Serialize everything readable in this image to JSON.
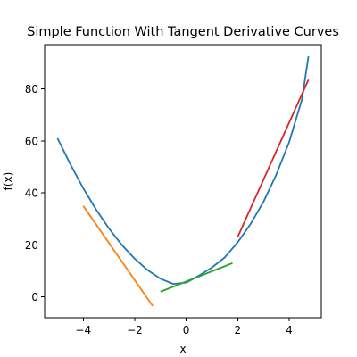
{
  "chart_data": {
    "type": "line",
    "title": "Simple Function With Tangent Derivative Curves",
    "xlabel": "x",
    "ylabel": "f(x)",
    "xlim": [
      -5.5,
      5.25
    ],
    "ylim": [
      -8,
      97
    ],
    "xticks": [
      -4,
      -2,
      0,
      2,
      4
    ],
    "yticks": [
      0,
      20,
      40,
      60,
      80
    ],
    "grid": false,
    "legend": "none",
    "series": [
      {
        "key": "function",
        "color": "#1f77b4",
        "x": [
          -5.0,
          -4.5,
          -4.0,
          -3.5,
          -3.0,
          -2.5,
          -2.0,
          -1.5,
          -1.0,
          -0.5,
          0.0,
          0.5,
          1.0,
          1.5,
          2.0,
          2.5,
          3.0,
          3.5,
          4.0,
          4.5,
          4.75
        ],
        "y": [
          61.0,
          51.0,
          41.8,
          33.6,
          26.3,
          20.0,
          14.7,
          10.3,
          7.0,
          5.0,
          5.5,
          8.2,
          11.3,
          15.2,
          21.0,
          28.0,
          36.5,
          47.0,
          59.5,
          76.0,
          92.5
        ]
      },
      {
        "key": "tangent-1",
        "color": "#ff7f0e",
        "x": [
          -4.0,
          -1.3
        ],
        "y": [
          35.0,
          -3.5
        ]
      },
      {
        "key": "tangent-2",
        "color": "#2ca02c",
        "x": [
          -1.0,
          1.8
        ],
        "y": [
          2.0,
          13.0
        ]
      },
      {
        "key": "tangent-3",
        "color": "#d62728",
        "x": [
          2.0,
          4.75
        ],
        "y": [
          23.0,
          83.5
        ]
      }
    ]
  }
}
